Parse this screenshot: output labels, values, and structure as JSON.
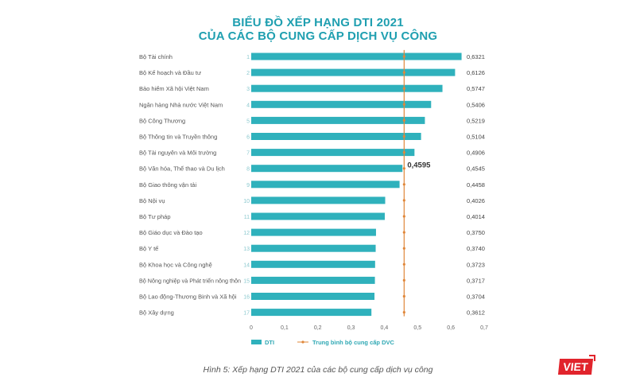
{
  "title_line1": "BIỂU ĐỒ XẾP HẠNG DTI 2021",
  "title_line2": "CỦA CÁC BỘ CUNG CẤP DỊCH VỤ CÔNG",
  "caption": "Hình 5: Xếp hạng DTI 2021 của các bộ cung cấp dịch vụ công",
  "logo_text": "VIET",
  "colors": {
    "bar": "#2fb1bc",
    "average": "#e0873a",
    "title": "#1f9fb0"
  },
  "chart_data": {
    "type": "bar",
    "orientation": "horizontal",
    "categories": [
      "Bộ Tài chính",
      "Bộ Kế hoạch và Đầu tư",
      "Bảo hiểm Xã hội Việt Nam",
      "Ngân hàng Nhà nước Việt Nam",
      "Bộ Công Thương",
      "Bộ Thông tin và Truyền thông",
      "Bộ Tài nguyên và Môi trường",
      "Bộ Văn hóa, Thể thao và Du lịch",
      "Bộ Giao thông vận tải",
      "Bộ Nội vụ",
      "Bộ Tư pháp",
      "Bộ Giáo dục và Đào tạo",
      "Bộ Y tế",
      "Bộ Khoa học và Công nghệ",
      "Bộ Nông nghiệp và Phát triển nông thôn",
      "Bộ Lao động-Thương Binh và Xã hội",
      "Bộ Xây dựng"
    ],
    "ranks": [
      "1",
      "2",
      "3",
      "4",
      "5",
      "6",
      "7",
      "8",
      "9",
      "10",
      "11",
      "12",
      "13",
      "14",
      "15",
      "16",
      "17"
    ],
    "series": [
      {
        "name": "DTI",
        "values": [
          0.6321,
          0.6126,
          0.5747,
          0.5406,
          0.5219,
          0.5104,
          0.4906,
          0.4545,
          0.4458,
          0.4026,
          0.4014,
          0.375,
          0.374,
          0.3723,
          0.3717,
          0.3704,
          0.3612
        ],
        "labels": [
          "0,6321",
          "0,6126",
          "0,5747",
          "0,5406",
          "0,5219",
          "0,5104",
          "0,4906",
          "0,4545",
          "0,4458",
          "0,4026",
          "0,4014",
          "0,3750",
          "0,3740",
          "0,3723",
          "0,3717",
          "0,3704",
          "0,3612"
        ]
      },
      {
        "name": "Trung bình bộ cung cấp DVC",
        "type": "line",
        "value": 0.4595,
        "label": "0,4595"
      }
    ],
    "xlim": [
      0,
      0.7
    ],
    "xticks": [
      "0",
      "0,1",
      "0,2",
      "0,3",
      "0,4",
      "0,5",
      "0,6",
      "0,7"
    ],
    "legend": "bottom-left",
    "grid": false
  }
}
